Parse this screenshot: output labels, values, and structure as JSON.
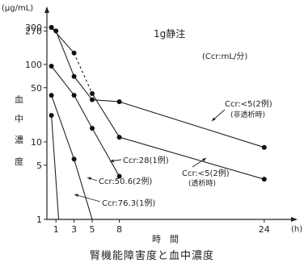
{
  "chart_data": {
    "type": "line",
    "title": "1g静注",
    "unit_note": "(Ccr:mL/分)",
    "ylabel_top": "(μg/mL)",
    "ylabel_side": [
      "血",
      "中",
      "濃",
      "度"
    ],
    "xlabel": "時　間",
    "xunit": "(h)",
    "caption": "腎機能障害度と血中濃度",
    "y_scale": "log",
    "ylim": [
      1,
      400
    ],
    "xlim": [
      0,
      26
    ],
    "x_ticks": [
      1,
      3,
      5,
      8,
      24
    ],
    "y_ticks": [
      {
        "value": 300,
        "label": "300"
      },
      {
        "value": 270,
        "label": "270"
      },
      {
        "value": 100,
        "label": "100"
      },
      {
        "value": 50,
        "label": "50"
      },
      {
        "value": 10,
        "label": "10"
      },
      {
        "value": 5,
        "label": "5"
      },
      {
        "value": 1,
        "label": "1"
      }
    ],
    "series": [
      {
        "name": "Ccr:<5(2例) 非透析時",
        "x": [
          0.5,
          1,
          3,
          5,
          8,
          24
        ],
        "y": [
          300,
          270,
          70,
          35,
          33,
          8.5
        ]
      },
      {
        "name": "Ccr:<5(2例) 透析時",
        "x": [
          0.5,
          3,
          5,
          8,
          24
        ],
        "y": [
          300,
          140,
          42,
          11.5,
          3.3
        ]
      },
      {
        "name": "Ccr:28(1例)",
        "x": [
          0.5,
          3,
          5,
          8
        ],
        "y": [
          95,
          40,
          15,
          3.6
        ]
      },
      {
        "name": "Ccr:50.6(2例)",
        "x": [
          0.5,
          3
        ],
        "y": [
          40,
          6
        ]
      },
      {
        "name": "Ccr:76.3(1例)",
        "x": [
          0.5,
          1.3
        ],
        "y": [
          22,
          1
        ]
      }
    ],
    "annotations": [
      {
        "text": "Ccr:<5(2例)",
        "sub": "(非透析時)"
      },
      {
        "text": "Ccr:28(1例)"
      },
      {
        "text": "Ccr:50.6(2例)"
      },
      {
        "text": "Ccr:<5(2例)",
        "sub": "(透析時)"
      },
      {
        "text": "Ccr:76.3(1例)"
      }
    ]
  }
}
